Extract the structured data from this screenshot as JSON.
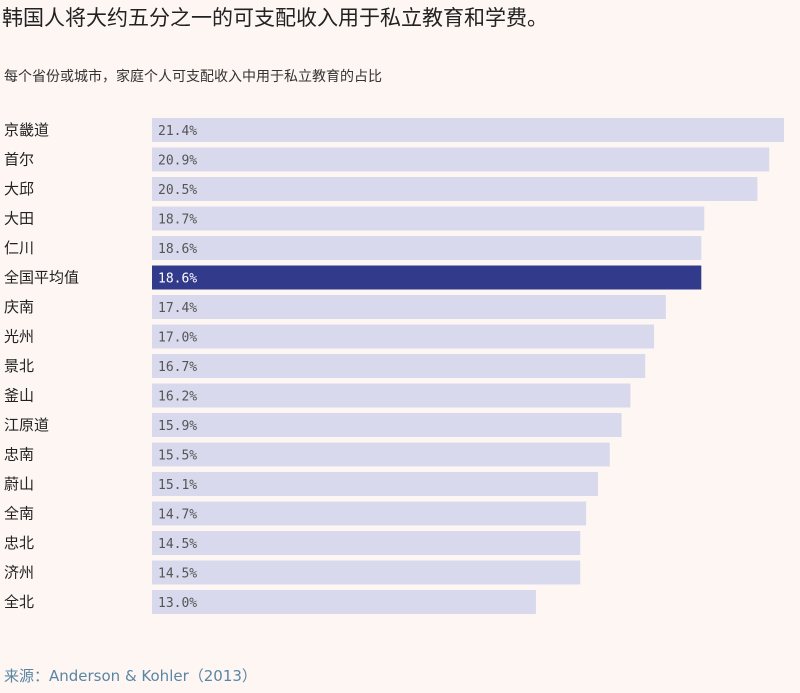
{
  "chart_data": {
    "type": "bar",
    "orientation": "horizontal",
    "title": "韩国人将大约五分之一的可支配收入用于私立教育和学费。",
    "subtitle": "每个省份或城市，家庭个人可支配收入中用于私立教育的占比",
    "source": "来源：Anderson & Kohler（2013）",
    "categories": [
      "京畿道",
      "首尔",
      "大邱",
      "大田",
      "仁川",
      "全国平均值",
      "庆南",
      "光州",
      "景北",
      "釜山",
      "江原道",
      "忠南",
      "蔚山",
      "全南",
      "忠北",
      "济州",
      "全北"
    ],
    "values": [
      21.4,
      20.9,
      20.5,
      18.7,
      18.6,
      18.6,
      17.4,
      17.0,
      16.7,
      16.2,
      15.9,
      15.5,
      15.1,
      14.7,
      14.5,
      14.5,
      13.0
    ],
    "labels": [
      "21.4%",
      "20.9%",
      "20.5%",
      "18.7%",
      "18.6%",
      "18.6%",
      "17.4%",
      "17.0%",
      "16.7%",
      "16.2%",
      "15.9%",
      "15.5%",
      "15.1%",
      "14.7%",
      "14.5%",
      "14.5%",
      "13.0%"
    ],
    "highlight": "全国平均值",
    "xlim": [
      0,
      21.4
    ],
    "unit": "%",
    "colors": {
      "bar": "#d8d9ed",
      "highlight": "#323a8c",
      "label": "#555",
      "highlight_label": "#ffffff"
    }
  }
}
